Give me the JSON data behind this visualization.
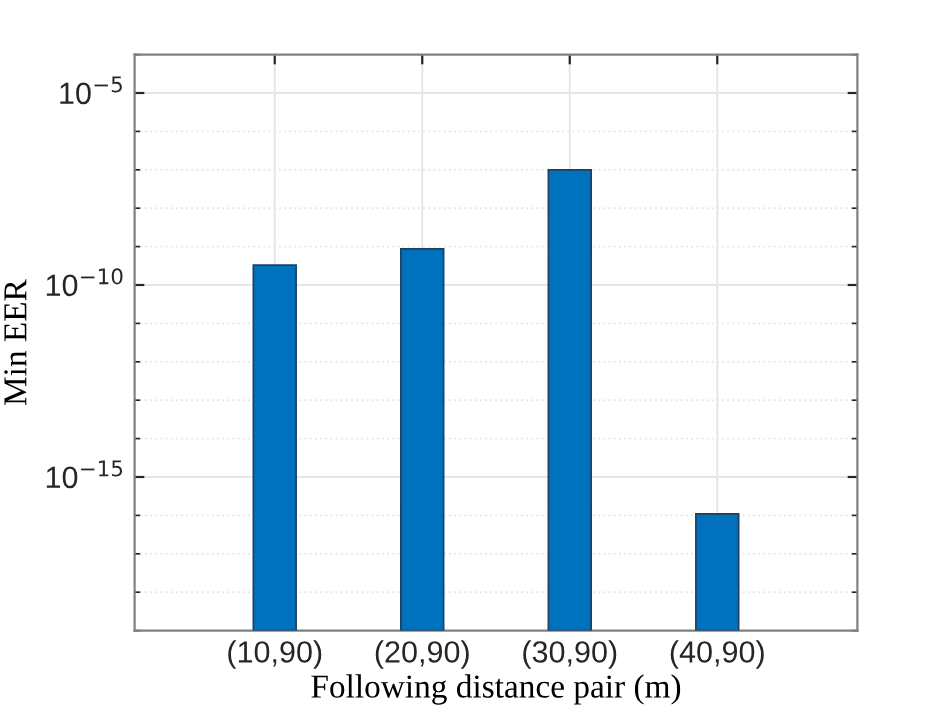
{
  "chart_data": {
    "type": "bar",
    "xlabel": "Following distance pair (m)",
    "ylabel": "Min EER",
    "categories": [
      "(10,90)",
      "(20,90)",
      "(30,90)",
      "(40,90)"
    ],
    "values": [
      3.3e-10,
      8.7e-10,
      1e-07,
      1.1e-16
    ],
    "color": "#0072bd",
    "log": true,
    "ylim": [
      1e-19,
      0.0001
    ],
    "yticks": [
      {
        "value": 1e-15,
        "label": "10$^{−15}$"
      },
      {
        "value": 1e-10,
        "label": "10$^{−10}$"
      },
      {
        "value": 1e-05,
        "label": "10$^{−5}$"
      }
    ],
    "grid": true
  }
}
